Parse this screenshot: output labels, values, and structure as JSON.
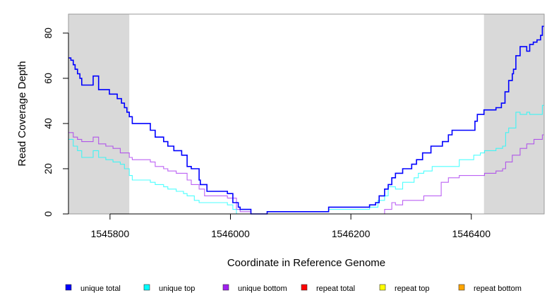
{
  "chart_data": {
    "type": "line",
    "xlabel": "Coordinate in Reference Genome",
    "ylabel": "Read Coverage Depth",
    "xlim": [
      1545731,
      1546521
    ],
    "ylim": [
      0,
      88.4
    ],
    "xticks": [
      1545800,
      1546000,
      1546200,
      1546400
    ],
    "xtick_labels": [
      "1545800",
      "1546000",
      "1546200",
      "1546400"
    ],
    "yticks": [
      0,
      20,
      40,
      60,
      80
    ],
    "ytick_labels": [
      "0",
      "20",
      "40",
      "60",
      "80"
    ],
    "shaded_regions": [
      [
        1545731,
        1545832
      ],
      [
        1546421,
        1546521
      ]
    ],
    "legend_position": "bottom",
    "series": [
      {
        "name": "unique total",
        "color": "#0000ff",
        "points": [
          [
            1545731,
            69
          ],
          [
            1545735,
            68
          ],
          [
            1545739,
            66
          ],
          [
            1545742,
            64
          ],
          [
            1545746,
            62
          ],
          [
            1545750,
            60
          ],
          [
            1545753,
            57
          ],
          [
            1545772,
            61
          ],
          [
            1545781,
            55
          ],
          [
            1545799,
            53
          ],
          [
            1545812,
            51
          ],
          [
            1545819,
            49
          ],
          [
            1545824,
            47
          ],
          [
            1545828,
            45
          ],
          [
            1545832,
            43
          ],
          [
            1545837,
            40
          ],
          [
            1545867,
            37
          ],
          [
            1545875,
            34
          ],
          [
            1545889,
            32
          ],
          [
            1545896,
            30
          ],
          [
            1545906,
            28
          ],
          [
            1545919,
            26
          ],
          [
            1545928,
            21
          ],
          [
            1545935,
            20
          ],
          [
            1545948,
            15
          ],
          [
            1545950,
            13
          ],
          [
            1545961,
            10
          ],
          [
            1545995,
            9
          ],
          [
            1546004,
            5
          ],
          [
            1546013,
            3
          ],
          [
            1546016,
            2
          ],
          [
            1546034,
            0
          ],
          [
            1546061,
            1
          ],
          [
            1546163,
            3
          ],
          [
            1546231,
            4
          ],
          [
            1546241,
            5
          ],
          [
            1546247,
            8
          ],
          [
            1546256,
            11
          ],
          [
            1546262,
            13
          ],
          [
            1546268,
            16
          ],
          [
            1546274,
            18
          ],
          [
            1546286,
            20
          ],
          [
            1546301,
            22
          ],
          [
            1546309,
            24
          ],
          [
            1546319,
            27
          ],
          [
            1546333,
            30
          ],
          [
            1546352,
            32
          ],
          [
            1546362,
            35
          ],
          [
            1546368,
            37
          ],
          [
            1546406,
            41
          ],
          [
            1546410,
            44
          ],
          [
            1546421,
            46
          ],
          [
            1546441,
            47
          ],
          [
            1546450,
            49
          ],
          [
            1546456,
            54
          ],
          [
            1546462,
            59
          ],
          [
            1546468,
            62
          ],
          [
            1546470,
            64
          ],
          [
            1546474,
            70
          ],
          [
            1546481,
            74
          ],
          [
            1546492,
            72
          ],
          [
            1546497,
            75
          ],
          [
            1546503,
            76
          ],
          [
            1546509,
            77
          ],
          [
            1546515,
            79
          ],
          [
            1546518,
            83
          ],
          [
            1546521,
            83
          ]
        ]
      },
      {
        "name": "unique top",
        "color": "#00ffff",
        "points": [
          [
            1545731,
            33
          ],
          [
            1545739,
            30
          ],
          [
            1545746,
            28
          ],
          [
            1545753,
            25
          ],
          [
            1545772,
            28
          ],
          [
            1545781,
            25
          ],
          [
            1545793,
            24
          ],
          [
            1545805,
            23
          ],
          [
            1545817,
            22
          ],
          [
            1545824,
            20
          ],
          [
            1545832,
            17
          ],
          [
            1545837,
            15
          ],
          [
            1545867,
            14
          ],
          [
            1545875,
            13
          ],
          [
            1545889,
            12
          ],
          [
            1545896,
            11
          ],
          [
            1545910,
            10
          ],
          [
            1545922,
            9
          ],
          [
            1545928,
            8
          ],
          [
            1545940,
            6
          ],
          [
            1545948,
            5
          ],
          [
            1545995,
            4
          ],
          [
            1546004,
            2
          ],
          [
            1546010,
            0
          ],
          [
            1546061,
            1
          ],
          [
            1546163,
            2
          ],
          [
            1546231,
            3
          ],
          [
            1546245,
            6
          ],
          [
            1546256,
            8
          ],
          [
            1546262,
            12
          ],
          [
            1546274,
            11
          ],
          [
            1546286,
            14
          ],
          [
            1546305,
            16
          ],
          [
            1546312,
            18
          ],
          [
            1546321,
            19
          ],
          [
            1546335,
            21
          ],
          [
            1546380,
            24
          ],
          [
            1546404,
            26
          ],
          [
            1546415,
            27
          ],
          [
            1546422,
            28
          ],
          [
            1546441,
            29
          ],
          [
            1546452,
            30
          ],
          [
            1546457,
            36
          ],
          [
            1546462,
            38
          ],
          [
            1546474,
            45
          ],
          [
            1546481,
            44
          ],
          [
            1546492,
            45
          ],
          [
            1546497,
            44
          ],
          [
            1546518,
            48
          ],
          [
            1546521,
            48
          ]
        ]
      },
      {
        "name": "unique bottom",
        "color": "#a020f0",
        "points": [
          [
            1545731,
            36
          ],
          [
            1545739,
            34
          ],
          [
            1545746,
            33
          ],
          [
            1545753,
            32
          ],
          [
            1545772,
            34
          ],
          [
            1545781,
            31
          ],
          [
            1545793,
            30
          ],
          [
            1545805,
            29
          ],
          [
            1545817,
            27
          ],
          [
            1545832,
            25
          ],
          [
            1545837,
            24
          ],
          [
            1545867,
            23
          ],
          [
            1545875,
            21
          ],
          [
            1545889,
            20
          ],
          [
            1545896,
            19
          ],
          [
            1545910,
            18
          ],
          [
            1545928,
            15
          ],
          [
            1545935,
            13
          ],
          [
            1545948,
            11
          ],
          [
            1545957,
            8
          ],
          [
            1545995,
            7
          ],
          [
            1546010,
            2
          ],
          [
            1546016,
            1
          ],
          [
            1546034,
            0
          ],
          [
            1546256,
            2
          ],
          [
            1546268,
            5
          ],
          [
            1546274,
            4
          ],
          [
            1546286,
            6
          ],
          [
            1546321,
            8
          ],
          [
            1546350,
            14
          ],
          [
            1546362,
            16
          ],
          [
            1546380,
            17
          ],
          [
            1546422,
            18
          ],
          [
            1546441,
            19
          ],
          [
            1546452,
            20
          ],
          [
            1546457,
            23
          ],
          [
            1546468,
            26
          ],
          [
            1546481,
            29
          ],
          [
            1546492,
            31
          ],
          [
            1546504,
            33
          ],
          [
            1546518,
            35
          ],
          [
            1546521,
            35
          ]
        ]
      },
      {
        "name": "repeat total",
        "color": "#ff0000",
        "points": [
          [
            1545731,
            0
          ],
          [
            1546521,
            0
          ]
        ]
      },
      {
        "name": "repeat top",
        "color": "#ffff00",
        "points": [
          [
            1545731,
            0
          ],
          [
            1546521,
            0
          ]
        ]
      },
      {
        "name": "repeat bottom",
        "color": "#ffa500",
        "points": [
          [
            1545731,
            0
          ],
          [
            1546521,
            0
          ]
        ]
      }
    ]
  }
}
